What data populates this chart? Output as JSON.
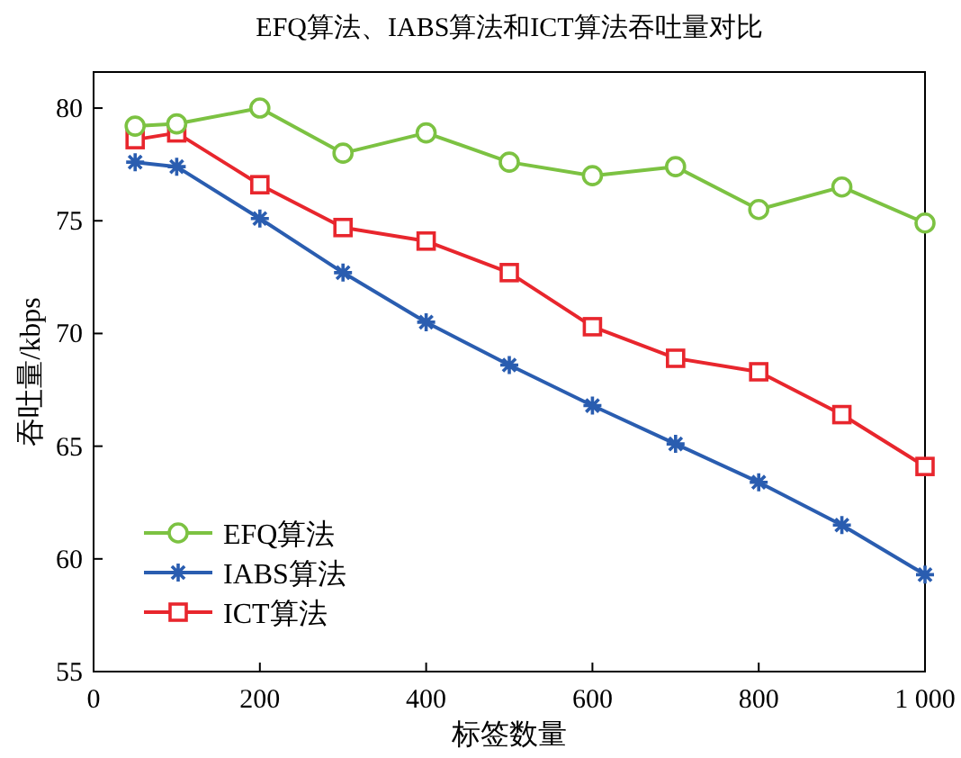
{
  "chart_data": {
    "type": "line",
    "title": "EFQ算法、IABS算法和ICT算法吞吐量对比",
    "xlabel": "标签数量",
    "ylabel": "吞吐量/kbps",
    "x": [
      50,
      100,
      200,
      300,
      400,
      500,
      600,
      700,
      800,
      900,
      1000
    ],
    "xlim": [
      0,
      1000
    ],
    "xticks": [
      0,
      200,
      400,
      600,
      800,
      {
        "value": 1000,
        "label": "1 000"
      }
    ],
    "ylim": [
      55,
      81.6
    ],
    "yticks": [
      55,
      60,
      65,
      70,
      75,
      80
    ],
    "grid": false,
    "legend": "bottom left",
    "series": [
      {
        "name": "EFQ算法",
        "color": "#7cc242",
        "marker": "circle",
        "values": [
          79.2,
          79.3,
          80.0,
          78.0,
          78.9,
          77.6,
          77.0,
          77.4,
          75.5,
          76.5,
          74.9
        ]
      },
      {
        "name": "IABS算法",
        "color": "#2a5db0",
        "marker": "cross",
        "values": [
          77.6,
          77.4,
          75.1,
          72.7,
          70.5,
          68.6,
          66.8,
          65.1,
          63.4,
          61.5,
          59.3
        ]
      },
      {
        "name": "ICT算法",
        "color": "#e8262d",
        "marker": "square",
        "values": [
          78.6,
          78.9,
          76.6,
          74.7,
          74.1,
          72.7,
          70.3,
          68.9,
          68.3,
          66.4,
          64.1
        ]
      }
    ]
  }
}
